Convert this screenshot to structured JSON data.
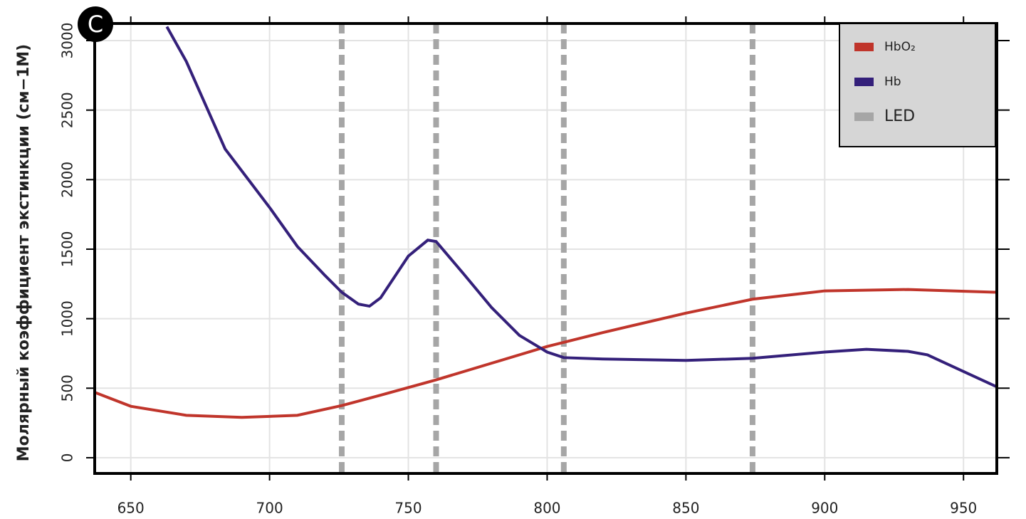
{
  "chart_data": {
    "type": "line",
    "panel_label": "C",
    "y_label": "Молярный коэффициент экстинкции (см−1М)",
    "xlim": [
      637,
      962
    ],
    "ylim": [
      -113,
      3123
    ],
    "xticks": [
      650,
      700,
      750,
      800,
      850,
      900,
      950
    ],
    "yticks": [
      0,
      500,
      1000,
      1500,
      2000,
      2500,
      3000
    ],
    "grid": true,
    "legend": "upper right",
    "series": [
      {
        "name": "HbO₂",
        "color": "#c0352b",
        "x": [
          637,
          650,
          670,
          690,
          710,
          726,
          740,
          760,
          780,
          800,
          820,
          850,
          874,
          900,
          930,
          962
        ],
        "values": [
          470,
          370,
          305,
          290,
          305,
          375,
          450,
          560,
          680,
          800,
          900,
          1040,
          1140,
          1200,
          1210,
          1190
        ]
      },
      {
        "name": "Hb",
        "color": "#34207a",
        "x": [
          663,
          670,
          684,
          700,
          710,
          720,
          726,
          732,
          736,
          740,
          750,
          757,
          760,
          770,
          780,
          790,
          800,
          806,
          820,
          850,
          874,
          900,
          915,
          930,
          937,
          950,
          962
        ],
        "values": [
          3100,
          2850,
          2220,
          1800,
          1520,
          1310,
          1190,
          1105,
          1090,
          1150,
          1450,
          1565,
          1555,
          1320,
          1080,
          880,
          760,
          720,
          710,
          700,
          715,
          760,
          780,
          765,
          740,
          620,
          510
        ]
      }
    ],
    "led": {
      "name": "LED",
      "color": "#a6a6a6",
      "x": [
        726,
        760,
        806,
        874
      ]
    }
  }
}
